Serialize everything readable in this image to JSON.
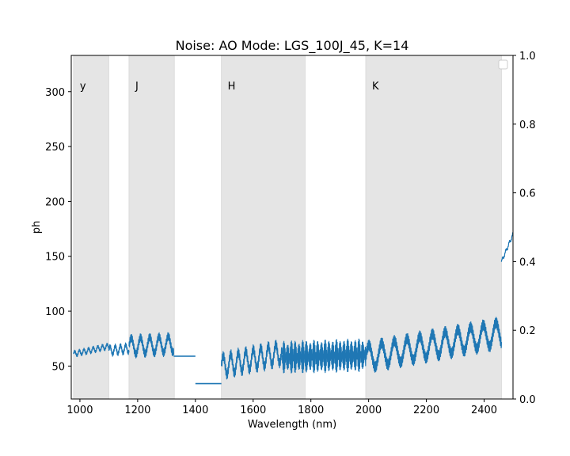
{
  "chart_data": {
    "type": "line",
    "title": "Noise: AO Mode: LGS_100J_45, K=14",
    "xlabel": "Wavelength (nm)",
    "ylabel": "ph",
    "xlim": [
      970,
      2500
    ],
    "ylim": [
      20,
      333
    ],
    "xticks": [
      1000,
      1200,
      1400,
      1600,
      1800,
      2000,
      2200,
      2400
    ],
    "yticks": [
      50,
      100,
      150,
      200,
      250,
      300
    ],
    "y2lim": [
      0,
      1
    ],
    "y2ticks": [
      "0.0",
      "0.2",
      "0.4",
      "0.6",
      "0.8",
      "1.0"
    ],
    "grid": false,
    "legend": "top-right (empty)",
    "line_color": "#1f77b4",
    "band_color": "#e5e5e5",
    "bands": [
      {
        "label": "y",
        "x0": 978,
        "x1": 1100
      },
      {
        "label": "J",
        "x0": 1170,
        "x1": 1327
      },
      {
        "label": "H",
        "x0": 1490,
        "x1": 1780
      },
      {
        "label": "K",
        "x0": 1990,
        "x1": 2460
      }
    ],
    "series": [
      {
        "segments": [
          {
            "x0": 978,
            "x1": 1100,
            "base_start": 61,
            "base_end": 68,
            "amp": 3,
            "period": 8,
            "style": "band"
          },
          {
            "x0": 1100,
            "x1": 1170,
            "base_start": 64,
            "base_end": 66,
            "amp": 5,
            "period": 9,
            "style": "band"
          },
          {
            "x0": 1170,
            "x1": 1325,
            "base_start": 68,
            "base_end": 70,
            "amp": 10,
            "period": 16,
            "style": "band"
          },
          {
            "x0": 1325,
            "x1": 1400,
            "flat": 59
          },
          {
            "x0": 1400,
            "x1": 1490,
            "flat": 34
          },
          {
            "x0": 1490,
            "x1": 1700,
            "base_start": 50,
            "base_end": 62,
            "amp": 12,
            "period": 13,
            "style": "band"
          },
          {
            "x0": 1700,
            "x1": 1990,
            "base_start": 58,
            "base_end": 60,
            "amp": 15,
            "period": 13,
            "style": "dense"
          },
          {
            "x0": 1990,
            "x1": 2460,
            "base_start": 58,
            "base_end": 80,
            "amp": 14,
            "period": 22,
            "style": "band"
          },
          {
            "x0": 2460,
            "x1": 2500,
            "base_start": 145,
            "base_end": 170,
            "amp": 2,
            "period": 6,
            "style": "band"
          }
        ]
      }
    ]
  }
}
